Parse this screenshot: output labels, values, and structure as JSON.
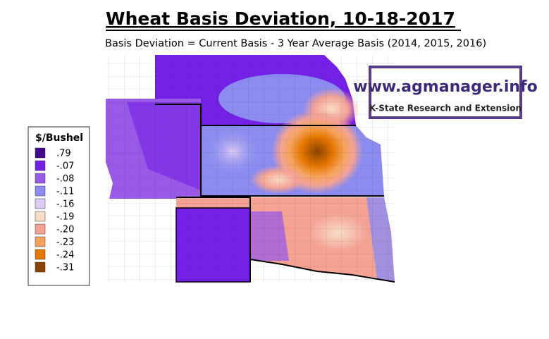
{
  "header": {
    "title": "Wheat Basis Deviation, 10-18-2017",
    "subtitle": "Basis Deviation = Current Basis - 3 Year Average Basis (2014, 2015, 2016)"
  },
  "legend": {
    "title": "$/Bushel",
    "items": [
      {
        "label": ".79",
        "color": "#3f0a8c"
      },
      {
        "label": "-.07",
        "color": "#7420e6"
      },
      {
        "label": "-.08",
        "color": "#9a5ae8"
      },
      {
        "label": "-.11",
        "color": "#8c8cf0"
      },
      {
        "label": "-.16",
        "color": "#dccbf2"
      },
      {
        "label": "-.19",
        "color": "#f9dcc6"
      },
      {
        "label": "-.20",
        "color": "#f4a294"
      },
      {
        "label": "-.23",
        "color": "#f5a35c"
      },
      {
        "label": "-.24",
        "color": "#e67700"
      },
      {
        "label": "-.31",
        "color": "#8a4300"
      }
    ]
  },
  "logo": {
    "url": "www.agmanager.info",
    "org": "K-State Research and Extension"
  }
}
